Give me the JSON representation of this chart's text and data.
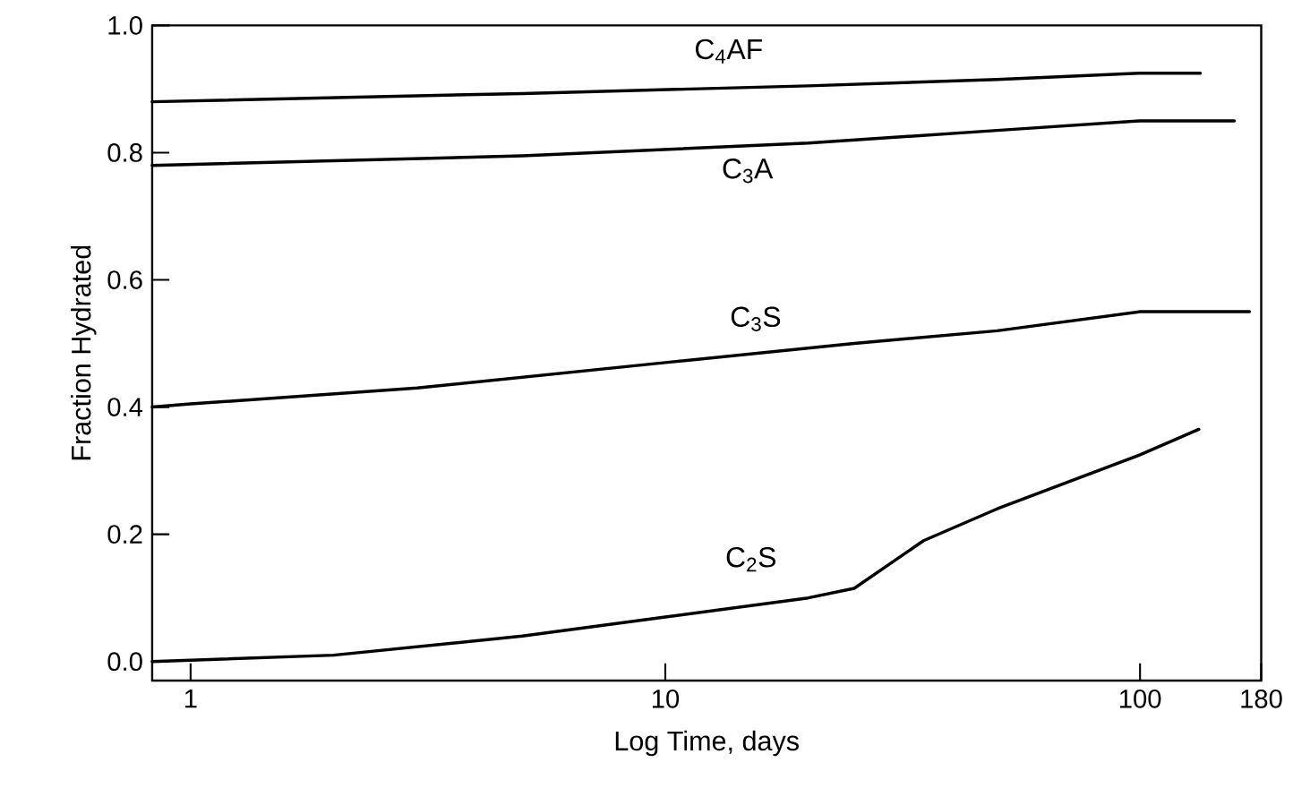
{
  "chart_data": {
    "type": "line",
    "xlabel": "Log Time, days",
    "ylabel": "Fraction Hydrated",
    "log": "x",
    "xlim": [
      0.83,
      180
    ],
    "ylim": [
      -0.03,
      1.0
    ],
    "xticks": [
      1,
      10,
      100,
      180
    ],
    "yticks": [
      {
        "value": 0,
        "label": "0.0"
      },
      {
        "value": 0.2,
        "label": "0.2"
      },
      {
        "value": 0.4,
        "label": "0.4"
      },
      {
        "value": 0.6,
        "label": "0.6"
      },
      {
        "value": 0.8,
        "label": "0.8"
      },
      {
        "value": 1.0,
        "label": "1.0"
      }
    ],
    "line_style": "solid",
    "series": [
      {
        "name": "C$_{4}$AF",
        "color": "#000000",
        "x": [
          0.83,
          5,
          20,
          50,
          100,
          134
        ],
        "values": [
          0.88,
          0.893,
          0.905,
          0.915,
          0.925,
          0.925
        ]
      },
      {
        "name": "C$_{3}$A",
        "color": "#000000",
        "x": [
          0.83,
          5,
          20,
          50,
          100,
          158
        ],
        "values": [
          0.78,
          0.795,
          0.815,
          0.835,
          0.85,
          0.85
        ]
      },
      {
        "name": "C$_{3}$S",
        "color": "#000000",
        "x": [
          0.83,
          1,
          3,
          10,
          25,
          50,
          100,
          170
        ],
        "values": [
          0.4,
          0.405,
          0.43,
          0.47,
          0.5,
          0.52,
          0.55,
          0.55
        ]
      },
      {
        "name": "C$_{2}$S",
        "color": "#000000",
        "x": [
          0.83,
          2,
          5,
          10,
          20,
          25,
          35,
          50,
          100,
          133
        ],
        "values": [
          0.0,
          0.01,
          0.04,
          0.07,
          0.1,
          0.115,
          0.19,
          0.24,
          0.325,
          0.365
        ]
      }
    ]
  }
}
